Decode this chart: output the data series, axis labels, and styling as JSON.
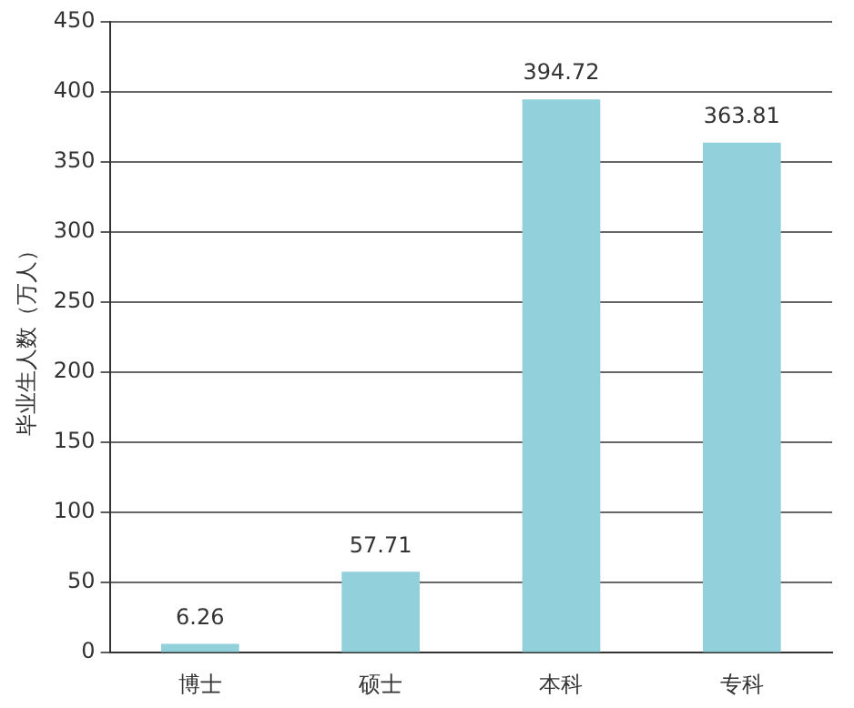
{
  "chart_data": {
    "type": "bar",
    "ylabel": "毕业生人数（万人）",
    "categories": [
      "博士",
      "硕士",
      "本科",
      "专科"
    ],
    "values": [
      6.26,
      57.71,
      394.72,
      363.81
    ],
    "color": "#92d1db",
    "ylim": [
      0,
      450
    ],
    "yticks": [
      0,
      50,
      100,
      150,
      200,
      250,
      300,
      350,
      400,
      450
    ],
    "grid": "y",
    "data_labels": true,
    "legend": false
  }
}
